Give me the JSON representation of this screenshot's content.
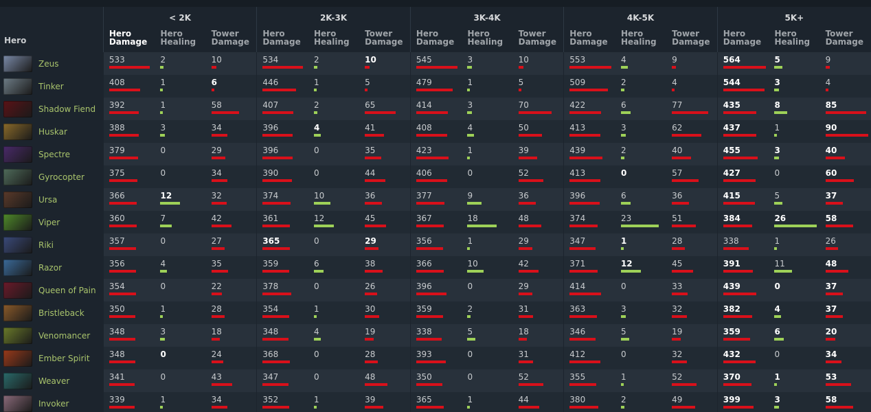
{
  "header": {
    "hero_label": "Hero",
    "brackets": [
      "< 2K",
      "2K-3K",
      "3K-4K",
      "4K-5K",
      "5K+"
    ],
    "metrics": [
      "Hero\nDamage",
      "Hero\nHealing",
      "Tower\nDamage"
    ]
  },
  "colors": {
    "damage_bar": "#d9101a",
    "healing_bar": "#9ed158",
    "hero_name": "#a9c46c"
  },
  "max": {
    "hero_damage": 564,
    "hero_healing": 26,
    "tower_damage": 90
  },
  "heroes": [
    {
      "name": "Zeus",
      "icon": "zeus-portrait",
      "color": "#7a8aa8",
      "stats": [
        [
          533,
          2,
          10
        ],
        [
          534,
          2,
          10
        ],
        [
          545,
          3,
          10
        ],
        [
          553,
          4,
          9
        ],
        [
          564,
          5,
          9
        ]
      ],
      "bold": [
        [
          0,
          0,
          0
        ],
        [
          0,
          0,
          1
        ],
        [
          0,
          0,
          0
        ],
        [
          0,
          0,
          0
        ],
        [
          1,
          1,
          0
        ]
      ]
    },
    {
      "name": "Tinker",
      "icon": "tinker-portrait",
      "color": "#6d7c86",
      "stats": [
        [
          408,
          1,
          6
        ],
        [
          446,
          1,
          5
        ],
        [
          479,
          1,
          5
        ],
        [
          509,
          2,
          4
        ],
        [
          544,
          3,
          4
        ]
      ],
      "bold": [
        [
          0,
          0,
          1
        ],
        [
          0,
          0,
          0
        ],
        [
          0,
          0,
          0
        ],
        [
          0,
          0,
          0
        ],
        [
          1,
          1,
          0
        ]
      ]
    },
    {
      "name": "Shadow Fiend",
      "icon": "shadow-fiend-portrait",
      "color": "#5a1216",
      "stats": [
        [
          392,
          1,
          58
        ],
        [
          407,
          2,
          65
        ],
        [
          414,
          3,
          70
        ],
        [
          422,
          6,
          77
        ],
        [
          435,
          8,
          85
        ]
      ],
      "bold": [
        [
          0,
          0,
          0
        ],
        [
          0,
          0,
          0
        ],
        [
          0,
          0,
          0
        ],
        [
          0,
          0,
          0
        ],
        [
          1,
          1,
          1
        ]
      ]
    },
    {
      "name": "Huskar",
      "icon": "huskar-portrait",
      "color": "#8a6a2a",
      "stats": [
        [
          388,
          3,
          34
        ],
        [
          396,
          4,
          41
        ],
        [
          408,
          4,
          50
        ],
        [
          413,
          3,
          62
        ],
        [
          437,
          1,
          90
        ]
      ],
      "bold": [
        [
          0,
          0,
          0
        ],
        [
          0,
          1,
          0
        ],
        [
          0,
          0,
          0
        ],
        [
          0,
          0,
          0
        ],
        [
          1,
          0,
          1
        ]
      ]
    },
    {
      "name": "Spectre",
      "icon": "spectre-portrait",
      "color": "#4a2a6a",
      "stats": [
        [
          379,
          0,
          29
        ],
        [
          396,
          0,
          35
        ],
        [
          423,
          1,
          39
        ],
        [
          439,
          2,
          40
        ],
        [
          455,
          3,
          40
        ]
      ],
      "bold": [
        [
          0,
          0,
          0
        ],
        [
          0,
          0,
          0
        ],
        [
          0,
          0,
          0
        ],
        [
          0,
          0,
          0
        ],
        [
          1,
          1,
          1
        ]
      ]
    },
    {
      "name": "Gyrocopter",
      "icon": "gyrocopter-portrait",
      "color": "#4f6b5a",
      "stats": [
        [
          375,
          0,
          34
        ],
        [
          390,
          0,
          44
        ],
        [
          406,
          0,
          52
        ],
        [
          413,
          0,
          57
        ],
        [
          427,
          0,
          60
        ]
      ],
      "bold": [
        [
          0,
          0,
          0
        ],
        [
          0,
          0,
          0
        ],
        [
          0,
          0,
          0
        ],
        [
          0,
          1,
          0
        ],
        [
          1,
          0,
          1
        ]
      ]
    },
    {
      "name": "Ursa",
      "icon": "ursa-portrait",
      "color": "#5a3a2a",
      "stats": [
        [
          366,
          12,
          32
        ],
        [
          374,
          10,
          36
        ],
        [
          377,
          9,
          36
        ],
        [
          396,
          6,
          36
        ],
        [
          415,
          5,
          37
        ]
      ],
      "bold": [
        [
          0,
          1,
          0
        ],
        [
          0,
          0,
          0
        ],
        [
          0,
          0,
          0
        ],
        [
          0,
          0,
          0
        ],
        [
          1,
          0,
          1
        ]
      ]
    },
    {
      "name": "Viper",
      "icon": "viper-portrait",
      "color": "#4f8a2a",
      "stats": [
        [
          360,
          7,
          42
        ],
        [
          361,
          12,
          45
        ],
        [
          367,
          18,
          48
        ],
        [
          374,
          23,
          51
        ],
        [
          384,
          26,
          58
        ]
      ],
      "bold": [
        [
          0,
          0,
          0
        ],
        [
          0,
          0,
          0
        ],
        [
          0,
          0,
          0
        ],
        [
          0,
          0,
          0
        ],
        [
          1,
          1,
          1
        ]
      ]
    },
    {
      "name": "Riki",
      "icon": "riki-portrait",
      "color": "#3a4a7a",
      "stats": [
        [
          357,
          0,
          27
        ],
        [
          365,
          0,
          29
        ],
        [
          356,
          1,
          29
        ],
        [
          347,
          1,
          28
        ],
        [
          338,
          1,
          26
        ]
      ],
      "bold": [
        [
          0,
          0,
          0
        ],
        [
          1,
          0,
          1
        ],
        [
          0,
          0,
          0
        ],
        [
          0,
          1,
          0
        ],
        [
          0,
          0,
          0
        ]
      ]
    },
    {
      "name": "Razor",
      "icon": "razor-portrait",
      "color": "#3a6a9a",
      "stats": [
        [
          356,
          4,
          35
        ],
        [
          359,
          6,
          38
        ],
        [
          366,
          10,
          42
        ],
        [
          371,
          12,
          45
        ],
        [
          391,
          11,
          48
        ]
      ],
      "bold": [
        [
          0,
          0,
          0
        ],
        [
          0,
          0,
          0
        ],
        [
          0,
          0,
          0
        ],
        [
          0,
          1,
          0
        ],
        [
          1,
          0,
          1
        ]
      ]
    },
    {
      "name": "Queen of Pain",
      "icon": "queen-of-pain-portrait",
      "color": "#6a1a2a",
      "stats": [
        [
          354,
          0,
          22
        ],
        [
          378,
          0,
          26
        ],
        [
          396,
          0,
          29
        ],
        [
          414,
          0,
          33
        ],
        [
          439,
          0,
          37
        ]
      ],
      "bold": [
        [
          0,
          0,
          0
        ],
        [
          0,
          0,
          0
        ],
        [
          0,
          0,
          0
        ],
        [
          0,
          0,
          0
        ],
        [
          1,
          1,
          1
        ]
      ]
    },
    {
      "name": "Bristleback",
      "icon": "bristleback-portrait",
      "color": "#8a5a2a",
      "stats": [
        [
          350,
          1,
          28
        ],
        [
          354,
          1,
          30
        ],
        [
          359,
          2,
          31
        ],
        [
          363,
          3,
          32
        ],
        [
          382,
          4,
          37
        ]
      ],
      "bold": [
        [
          0,
          0,
          0
        ],
        [
          0,
          0,
          0
        ],
        [
          0,
          0,
          0
        ],
        [
          0,
          0,
          0
        ],
        [
          1,
          1,
          1
        ]
      ]
    },
    {
      "name": "Venomancer",
      "icon": "venomancer-portrait",
      "color": "#6a7a2a",
      "stats": [
        [
          348,
          3,
          18
        ],
        [
          348,
          4,
          19
        ],
        [
          338,
          5,
          18
        ],
        [
          346,
          5,
          19
        ],
        [
          359,
          6,
          20
        ]
      ],
      "bold": [
        [
          0,
          0,
          0
        ],
        [
          0,
          0,
          0
        ],
        [
          0,
          0,
          0
        ],
        [
          0,
          0,
          0
        ],
        [
          1,
          1,
          1
        ]
      ]
    },
    {
      "name": "Ember Spirit",
      "icon": "ember-spirit-portrait",
      "color": "#9a3a1a",
      "stats": [
        [
          348,
          0,
          24
        ],
        [
          368,
          0,
          28
        ],
        [
          393,
          0,
          31
        ],
        [
          412,
          0,
          32
        ],
        [
          432,
          0,
          34
        ]
      ],
      "bold": [
        [
          0,
          1,
          0
        ],
        [
          0,
          0,
          0
        ],
        [
          0,
          0,
          0
        ],
        [
          0,
          0,
          0
        ],
        [
          1,
          0,
          1
        ]
      ]
    },
    {
      "name": "Weaver",
      "icon": "weaver-portrait",
      "color": "#2a6a6a",
      "stats": [
        [
          341,
          0,
          43
        ],
        [
          347,
          0,
          48
        ],
        [
          350,
          0,
          52
        ],
        [
          355,
          1,
          52
        ],
        [
          370,
          1,
          53
        ]
      ],
      "bold": [
        [
          0,
          0,
          0
        ],
        [
          0,
          0,
          0
        ],
        [
          0,
          0,
          0
        ],
        [
          0,
          0,
          0
        ],
        [
          1,
          1,
          1
        ]
      ]
    },
    {
      "name": "Invoker",
      "icon": "invoker-portrait",
      "color": "#8a6a7a",
      "stats": [
        [
          339,
          1,
          34
        ],
        [
          352,
          1,
          39
        ],
        [
          365,
          1,
          44
        ],
        [
          380,
          2,
          49
        ],
        [
          399,
          3,
          58
        ]
      ],
      "bold": [
        [
          0,
          0,
          0
        ],
        [
          0,
          0,
          0
        ],
        [
          0,
          0,
          0
        ],
        [
          0,
          0,
          0
        ],
        [
          1,
          1,
          1
        ]
      ]
    }
  ]
}
